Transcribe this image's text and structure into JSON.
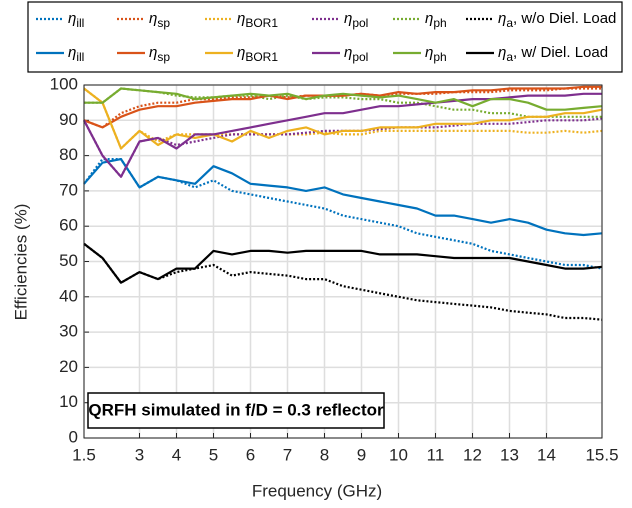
{
  "chart_data": {
    "type": "line",
    "xlabel": "Frequency (GHz)",
    "ylabel": "Efficiencies (%)",
    "annotation": "QRFH simulated in f/D = 0.3 reflector",
    "x": [
      1.5,
      2,
      2.5,
      3,
      3.5,
      4,
      4.5,
      5,
      5.5,
      6,
      6.5,
      7,
      7.5,
      8,
      8.5,
      9,
      9.5,
      10,
      10.5,
      11,
      11.5,
      12,
      12.5,
      13,
      13.5,
      14,
      14.5,
      15,
      15.5
    ],
    "xlim": [
      1.5,
      15.5
    ],
    "xticks": [
      1.5,
      3,
      4,
      5,
      6,
      7,
      8,
      9,
      10,
      11,
      12,
      13,
      14,
      15.5
    ],
    "ylim": [
      0,
      100
    ],
    "yticks": [
      0,
      10,
      20,
      30,
      40,
      50,
      60,
      70,
      80,
      90,
      100
    ],
    "grid": true,
    "series": [
      {
        "name": "ηill",
        "color": "#0072BD",
        "dotted": true,
        "values": [
          72,
          79,
          79,
          71,
          74,
          73,
          71,
          73,
          70,
          69,
          68,
          67,
          66,
          65,
          63,
          62,
          61,
          60,
          58,
          57,
          56,
          55,
          53,
          52,
          51,
          50,
          49,
          49,
          48
        ]
      },
      {
        "name": "ηsp",
        "color": "#D95319",
        "dotted": true,
        "values": [
          90,
          88,
          92,
          94,
          95,
          95,
          96,
          96,
          96.5,
          96.5,
          97,
          96.5,
          97,
          97,
          97,
          97.5,
          97,
          97.5,
          97.5,
          97.5,
          98,
          98,
          98,
          98.5,
          98.5,
          98.5,
          99,
          99,
          99
        ]
      },
      {
        "name": "ηBOR1",
        "color": "#EDB120",
        "dotted": true,
        "values": [
          99,
          95,
          82,
          87,
          84,
          86,
          86,
          86,
          86,
          86,
          86,
          86,
          86,
          86.5,
          86,
          86,
          87,
          87,
          87,
          87,
          87,
          87,
          87,
          87,
          86.5,
          86.5,
          87,
          86.5,
          87
        ]
      },
      {
        "name": "ηpol",
        "color": "#7E2F8E",
        "dotted": true,
        "values": [
          90,
          80,
          74,
          84,
          85,
          83,
          84,
          85,
          86,
          86,
          86,
          86,
          86.5,
          87,
          87,
          87,
          87.5,
          88,
          88,
          88,
          88.5,
          89,
          89,
          89,
          89.5,
          90,
          90,
          90,
          90.5
        ]
      },
      {
        "name": "ηph",
        "color": "#77AC30",
        "dotted": true,
        "values": [
          95,
          95,
          99,
          98.5,
          98,
          97,
          96.5,
          96.5,
          97,
          97,
          96,
          97,
          96,
          96.5,
          96.5,
          96,
          96,
          95,
          95,
          94,
          93,
          93,
          92,
          92,
          91,
          91,
          91,
          91,
          91
        ]
      },
      {
        "name": "ηa, w/o Diel. Load",
        "color": "#000000",
        "dotted": true,
        "values": [
          55,
          51,
          44,
          47,
          45,
          47,
          48,
          49,
          46,
          47,
          46.5,
          46,
          45,
          45,
          43,
          42,
          41,
          40,
          39,
          38.5,
          38,
          37.5,
          37,
          36,
          35.5,
          35,
          34,
          34,
          33.5
        ]
      },
      {
        "name": "ηill",
        "color": "#0072BD",
        "dotted": false,
        "values": [
          72,
          78,
          79,
          71,
          74,
          73,
          72,
          77,
          75,
          72,
          71.5,
          71,
          70,
          71,
          69,
          68,
          67,
          66,
          65,
          63,
          63,
          62,
          61,
          62,
          61,
          59,
          58,
          57.5,
          58
        ]
      },
      {
        "name": "ηsp",
        "color": "#D95319",
        "dotted": false,
        "values": [
          90,
          88,
          91,
          93,
          94,
          94,
          95,
          95.5,
          96,
          96,
          97,
          96,
          97,
          97,
          97,
          97.5,
          97,
          98,
          97.5,
          98,
          98,
          98.5,
          98.5,
          99,
          99,
          99,
          99,
          99.5,
          99.5
        ]
      },
      {
        "name": "ηBOR1",
        "color": "#EDB120",
        "dotted": false,
        "values": [
          99,
          95,
          82,
          87,
          83,
          86,
          85,
          86,
          84,
          87,
          85,
          87,
          88,
          86,
          87,
          87,
          88,
          88,
          88,
          89,
          89,
          89,
          90,
          90,
          91,
          91,
          92,
          92,
          93
        ]
      },
      {
        "name": "ηpol",
        "color": "#7E2F8E",
        "dotted": false,
        "values": [
          90,
          80,
          74,
          84,
          85,
          82,
          86,
          86,
          87,
          88,
          89,
          90,
          91,
          92,
          92,
          93,
          94,
          94,
          94.5,
          95,
          95.5,
          96,
          96,
          96.5,
          97,
          97,
          97,
          97.5,
          97.5
        ]
      },
      {
        "name": "ηph",
        "color": "#77AC30",
        "dotted": false,
        "values": [
          95,
          95,
          99,
          98.5,
          98,
          97.5,
          96,
          96.5,
          97,
          97.5,
          97,
          97.5,
          96,
          97,
          97.5,
          97,
          96.5,
          97,
          96,
          95,
          96,
          94,
          96,
          96,
          95,
          93,
          93,
          93.5,
          94
        ]
      },
      {
        "name": "ηa, w/ Diel. Load",
        "color": "#000000",
        "dotted": false,
        "values": [
          55,
          51,
          44,
          47,
          45,
          48,
          48,
          53,
          52,
          53,
          53,
          52.5,
          53,
          53,
          53,
          53,
          52,
          52,
          52,
          51.5,
          51,
          51,
          51,
          51,
          50,
          49,
          48,
          48,
          48.5
        ]
      }
    ]
  }
}
